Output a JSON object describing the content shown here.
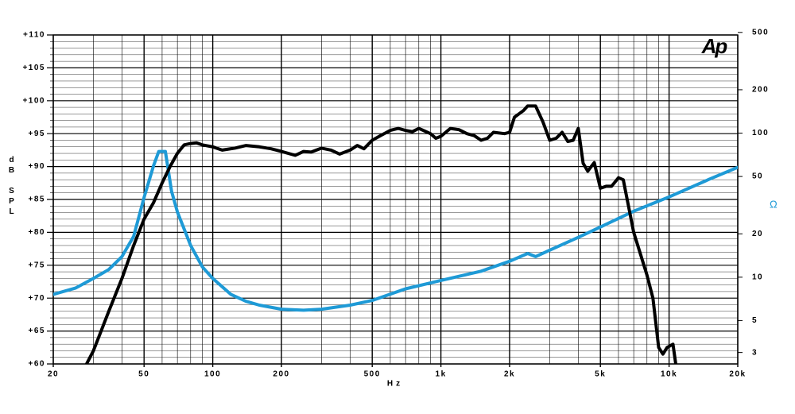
{
  "chart_data": {
    "type": "line",
    "logo": "Ap",
    "ylabel": "dB SPL",
    "xlabel": "Hz",
    "y2label": "Ω",
    "xlog": true,
    "y2log": true,
    "grid": true,
    "xlim": [
      20,
      20000
    ],
    "ylim": [
      60,
      110
    ],
    "y2lim": [
      2.5,
      480
    ],
    "xticks": [
      20,
      50,
      100,
      200,
      500,
      {
        "value": 1000,
        "label": "1k"
      },
      {
        "value": 2000,
        "label": "2k"
      },
      {
        "value": 5000,
        "label": "5k"
      },
      {
        "value": 10000,
        "label": "10k"
      },
      {
        "value": 20000,
        "label": "20k"
      }
    ],
    "xgrid_minor": [
      30,
      40,
      60,
      70,
      80,
      90,
      300,
      400,
      600,
      700,
      800,
      900,
      3000,
      4000,
      6000,
      7000,
      8000,
      9000
    ],
    "yticks": [
      {
        "value": 60,
        "label": "+60"
      },
      {
        "value": 65,
        "label": "+65"
      },
      {
        "value": 70,
        "label": "+70"
      },
      {
        "value": 75,
        "label": "+75"
      },
      {
        "value": 80,
        "label": "+80"
      },
      {
        "value": 85,
        "label": "+85"
      },
      {
        "value": 90,
        "label": "+90"
      },
      {
        "value": 95,
        "label": "+95"
      },
      {
        "value": 100,
        "label": "+100"
      },
      {
        "value": 105,
        "label": "+105"
      },
      {
        "value": 110,
        "label": "+110"
      }
    ],
    "ygrid_minor": [
      61,
      62,
      63,
      64,
      66,
      67,
      68,
      69,
      71,
      72,
      73,
      74,
      76,
      77,
      78,
      79,
      81,
      82,
      83,
      84,
      86,
      87,
      88,
      89,
      91,
      92,
      93,
      94,
      96,
      97,
      98,
      99,
      101,
      102,
      103,
      104,
      106,
      107,
      108,
      109
    ],
    "y2ticks": [
      3,
      5,
      10,
      20,
      50,
      100,
      200,
      500
    ],
    "series": [
      {
        "color": "#000000",
        "x": [
          28,
          30,
          32,
          35,
          40,
          45,
          50,
          55,
          60,
          65,
          70,
          75,
          80,
          85,
          90,
          100,
          110,
          125,
          140,
          160,
          180,
          200,
          230,
          250,
          270,
          300,
          330,
          360,
          400,
          430,
          460,
          500,
          550,
          600,
          650,
          700,
          750,
          800,
          900,
          950,
          1000,
          1100,
          1200,
          1300,
          1400,
          1500,
          1600,
          1700,
          1900,
          2000,
          2100,
          2300,
          2400,
          2600,
          2800,
          3000,
          3200,
          3400,
          3600,
          3800,
          4000,
          4200,
          4400,
          4700,
          5000,
          5300,
          5600,
          6000,
          6300,
          7000,
          8000,
          8500,
          9000,
          9400,
          9800,
          10400,
          10700
        ],
        "values": [
          60,
          62,
          64.5,
          68,
          73,
          78,
          82,
          84.5,
          87.5,
          90,
          92,
          93.3,
          93.5,
          93.6,
          93.3,
          93,
          92.5,
          92.8,
          93.2,
          93,
          92.7,
          92.3,
          91.7,
          92.3,
          92.2,
          92.8,
          92.5,
          91.9,
          92.5,
          93.2,
          92.7,
          94,
          94.8,
          95.5,
          95.8,
          95.5,
          95.3,
          95.8,
          95,
          94.3,
          94.6,
          95.8,
          95.6,
          95,
          94.7,
          94,
          94.3,
          95.2,
          95,
          95.2,
          97.5,
          98.5,
          99.2,
          99.2,
          96.8,
          94,
          94.3,
          95.2,
          93.8,
          94,
          95.8,
          90.5,
          89.3,
          90.6,
          86.7,
          87,
          87,
          88.3,
          88,
          80,
          73.5,
          70,
          62.5,
          61.5,
          62.5,
          63,
          60
        ]
      },
      {
        "color": "#1e9ad6",
        "axis": "y2",
        "x": [
          20,
          25,
          30,
          35,
          40,
          45,
          50,
          55,
          58,
          62,
          66,
          70,
          80,
          90,
          100,
          120,
          140,
          160,
          200,
          250,
          300,
          400,
          500,
          700,
          1000,
          1500,
          2000,
          2400,
          2600,
          3000,
          4000,
          5000,
          7000,
          10000,
          15000,
          20000
        ],
        "values": [
          7.6,
          8.4,
          9.8,
          11.3,
          13.9,
          19.2,
          35.7,
          59.3,
          74.6,
          74.6,
          39.5,
          28.4,
          16.6,
          11.8,
          9.8,
          7.6,
          6.8,
          6.4,
          6.0,
          5.9,
          6.0,
          6.4,
          6.9,
          8.3,
          9.5,
          11.0,
          12.9,
          14.6,
          13.9,
          15.4,
          18.9,
          22.3,
          28.7,
          36.1,
          47.8,
          57.9
        ]
      }
    ]
  }
}
